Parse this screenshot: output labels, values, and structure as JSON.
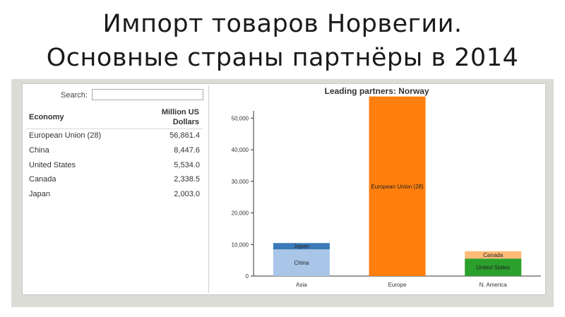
{
  "slide": {
    "title_line1": "Импорт товаров Норвегии.",
    "title_line2": "Основные страны партнёры в 2014"
  },
  "table": {
    "search_label": "Search:",
    "search_value": "",
    "col_economy": "Economy",
    "col_value_line1": "Million US",
    "col_value_line2": "Dollars",
    "rows": [
      {
        "economy": "European Union (28)",
        "value": "56,861.4"
      },
      {
        "economy": "China",
        "value": "8,447.6"
      },
      {
        "economy": "United States",
        "value": "5,534.0"
      },
      {
        "economy": "Canada",
        "value": "2,338.5"
      },
      {
        "economy": "Japan",
        "value": "2,003.0"
      }
    ]
  },
  "chart_data": {
    "type": "bar",
    "stacked": true,
    "title": "Leading partners: Norway",
    "xlabel": "",
    "ylabel": "",
    "categories": [
      "Asia",
      "Europe",
      "N. America"
    ],
    "ylim": [
      0,
      55000
    ],
    "yticks": [
      0,
      10000,
      20000,
      30000,
      40000,
      50000
    ],
    "ytick_labels": [
      "0",
      "10,000",
      "20,000",
      "30,000",
      "40,000",
      "50,000"
    ],
    "series": [
      {
        "name": "China",
        "category": "Asia",
        "base": 0,
        "value": 8447.6,
        "color": "#a9c6e8"
      },
      {
        "name": "Japan",
        "category": "Asia",
        "base": 8447.6,
        "value": 2003.0,
        "color": "#3a7ab8"
      },
      {
        "name": "European Union (28)",
        "category": "Europe",
        "base": 0,
        "value": 56861.4,
        "color": "#ff7f0e"
      },
      {
        "name": "United States",
        "category": "N. America",
        "base": 0,
        "value": 5534.0,
        "color": "#2ca02c"
      },
      {
        "name": "Canada",
        "category": "N. America",
        "base": 5534.0,
        "value": 2338.5,
        "color": "#ffbb78"
      }
    ],
    "grid": false,
    "axis_color": "#333333"
  }
}
